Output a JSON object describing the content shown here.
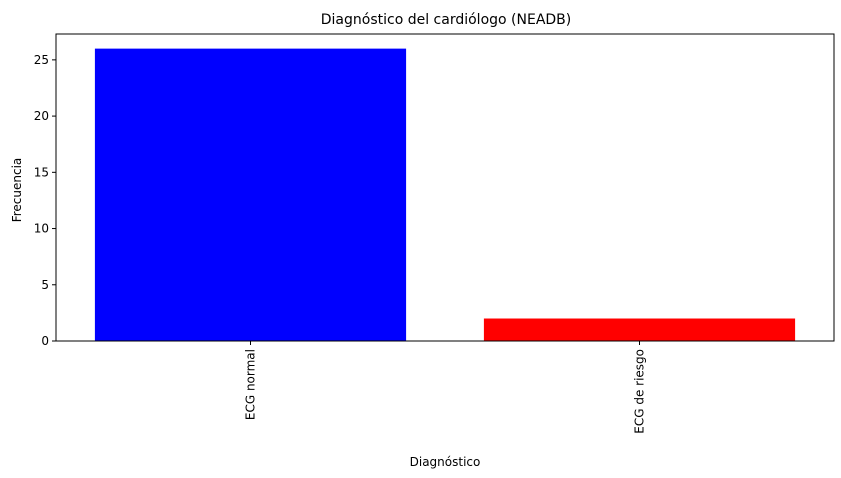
{
  "chart_data": {
    "type": "bar",
    "title": "Diagnóstico del cardiólogo (NEADB)",
    "xlabel": "Diagnóstico",
    "ylabel": "Frecuencia",
    "categories": [
      "ECG normal",
      "ECG de riesgo"
    ],
    "values": [
      26,
      2
    ],
    "colors": [
      "#0000ff",
      "#ff0000"
    ],
    "ylim": [
      0,
      27.3
    ],
    "yticks": [
      0,
      5,
      10,
      15,
      20,
      25
    ],
    "xtick_rotation": 90,
    "grid": false,
    "legend": "none"
  }
}
